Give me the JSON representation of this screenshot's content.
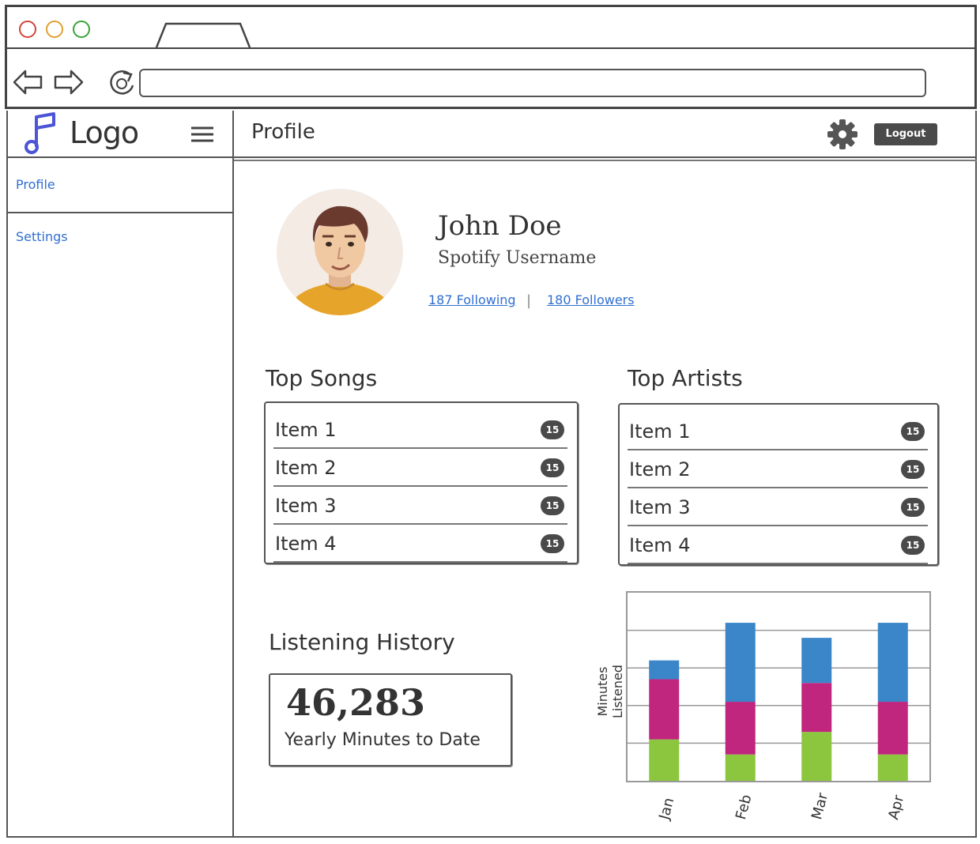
{
  "app": {
    "logo_text": "Logo",
    "page_title": "Profile",
    "logout_label": "Logout"
  },
  "sidebar": {
    "items": [
      {
        "label": "Profile"
      },
      {
        "label": "Settings"
      }
    ]
  },
  "profile": {
    "name": "John Doe",
    "subtitle": "Spotify Username",
    "following": "187 Following",
    "separator": "|",
    "followers": "180 Followers"
  },
  "top_songs": {
    "title": "Top Songs",
    "items": [
      {
        "label": "Item 1",
        "badge": "15"
      },
      {
        "label": "Item 2",
        "badge": "15"
      },
      {
        "label": "Item 3",
        "badge": "15"
      },
      {
        "label": "Item 4",
        "badge": "15"
      }
    ]
  },
  "top_artists": {
    "title": "Top Artists",
    "items": [
      {
        "label": "Item 1",
        "badge": "15"
      },
      {
        "label": "Item 2",
        "badge": "15"
      },
      {
        "label": "Item 3",
        "badge": "15"
      },
      {
        "label": "Item 4",
        "badge": "15"
      }
    ]
  },
  "listening_history": {
    "title": "Listening History",
    "value": "46,283",
    "label": "Yearly Minutes to Date"
  },
  "colors": {
    "link": "#2f6fd0",
    "logo_icon": "#4b55d6",
    "series_blue": "#3a86c8",
    "series_magenta": "#c0267e",
    "series_green": "#8cc63e"
  },
  "icons": {
    "logo": "music-note-icon",
    "menu": "hamburger-menu-icon",
    "settings": "gear-icon",
    "back": "back-arrow-icon",
    "forward": "forward-arrow-icon",
    "reload": "reload-icon"
  },
  "chart_data": {
    "type": "bar",
    "stacked": true,
    "categories": [
      "Jan",
      "Feb",
      "Mar",
      "Apr"
    ],
    "series": [
      {
        "values": [
          1.1,
          0.7,
          1.3,
          0.7
        ],
        "color": "#8cc63e"
      },
      {
        "values": [
          1.6,
          1.4,
          1.3,
          1.4
        ],
        "color": "#c0267e"
      },
      {
        "values": [
          0.5,
          2.1,
          1.2,
          2.1
        ],
        "color": "#3a86c8"
      }
    ],
    "xlabel": "",
    "ylabel": "Minutes Listened",
    "ylim": [
      0,
      5
    ],
    "grid": true
  }
}
